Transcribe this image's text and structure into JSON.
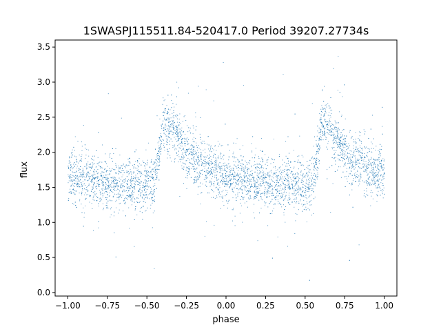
{
  "chart_data": {
    "type": "scatter",
    "title": "1SWASPJ115511.84-520417.0 Period 39207.27734s",
    "xlabel": "phase",
    "ylabel": "flux",
    "xlim": [
      -1.08,
      1.08
    ],
    "ylim": [
      -0.05,
      3.6
    ],
    "xticks": [
      -1.0,
      -0.75,
      -0.5,
      -0.25,
      0.0,
      0.25,
      0.5,
      0.75,
      1.0
    ],
    "xtick_labels": [
      "−1.00",
      "−0.75",
      "−0.50",
      "−0.25",
      "0.00",
      "0.25",
      "0.50",
      "0.75",
      "1.00"
    ],
    "yticks": [
      0.0,
      0.5,
      1.0,
      1.5,
      2.0,
      2.5,
      3.0,
      3.5
    ],
    "ytick_labels": [
      "0.0",
      "0.5",
      "1.0",
      "1.5",
      "2.0",
      "2.5",
      "3.0",
      "3.5"
    ],
    "grid": false,
    "marker_color": "#1f77b4",
    "phase_period": 1.0,
    "light_curve_profile": [
      {
        "phase": -0.5,
        "flux": 1.55
      },
      {
        "phase": -0.45,
        "flux": 1.6
      },
      {
        "phase": -0.42,
        "flux": 2.0
      },
      {
        "phase": -0.4,
        "flux": 2.45
      },
      {
        "phase": -0.35,
        "flux": 2.35
      },
      {
        "phase": -0.25,
        "flux": 2.0
      },
      {
        "phase": -0.1,
        "flux": 1.75
      },
      {
        "phase": 0.1,
        "flux": 1.6
      },
      {
        "phase": 0.3,
        "flux": 1.55
      },
      {
        "phase": 0.5,
        "flux": 1.55
      }
    ],
    "typical_scatter": 0.18
  }
}
